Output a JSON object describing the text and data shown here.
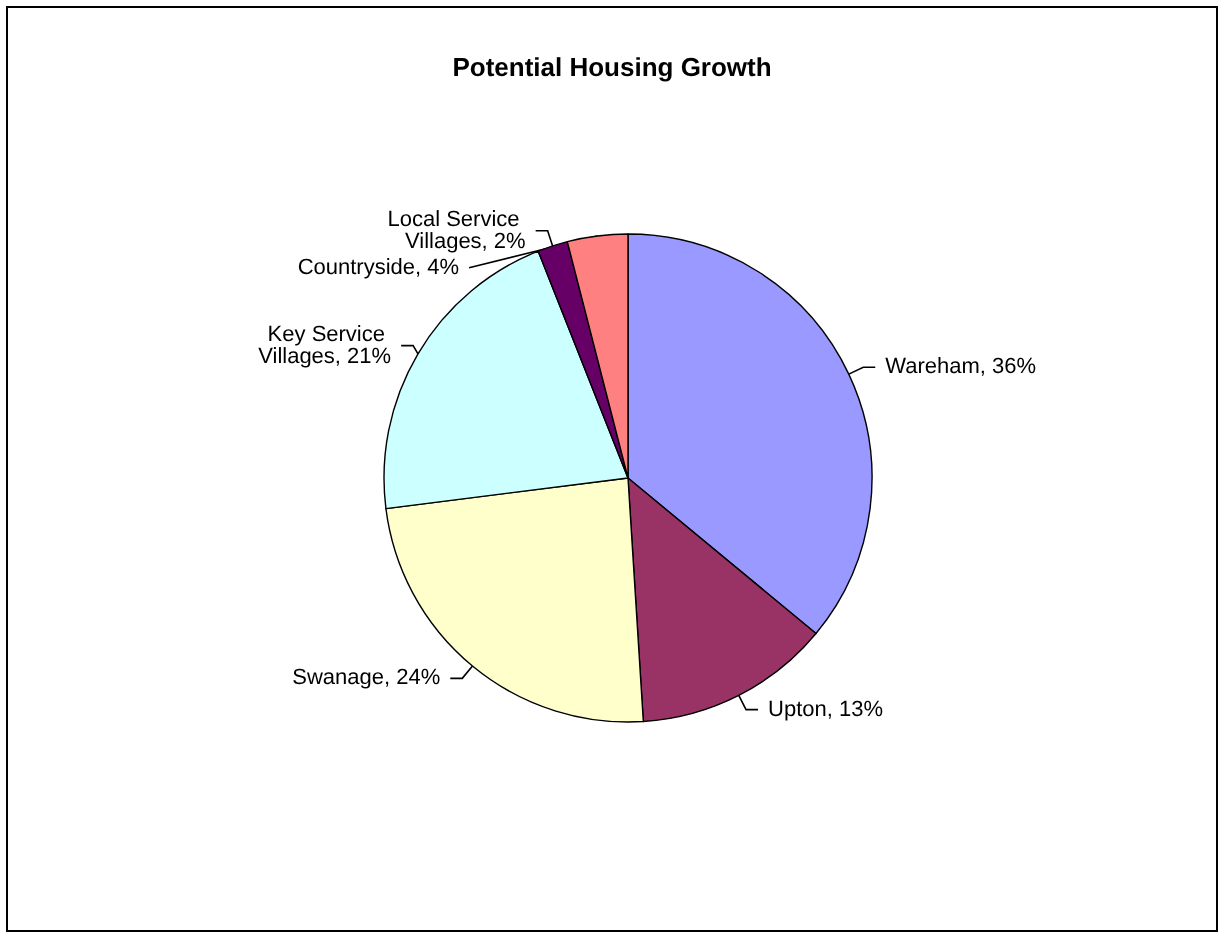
{
  "chart_data": {
    "type": "pie",
    "title": "Potential Housing Growth",
    "categories": [
      "Wareham",
      "Upton",
      "Swanage",
      "Key Service Villages",
      "Local Service Villages",
      "Countryside"
    ],
    "values": [
      36,
      13,
      24,
      21,
      2,
      4
    ],
    "value_labels": [
      "36%",
      "13%",
      "24%",
      "21%",
      "2%",
      "4%"
    ],
    "colors": [
      "#9999ff",
      "#993366",
      "#ffffcc",
      "#ccffff",
      "#660066",
      "#ff8080"
    ],
    "legend": false
  }
}
